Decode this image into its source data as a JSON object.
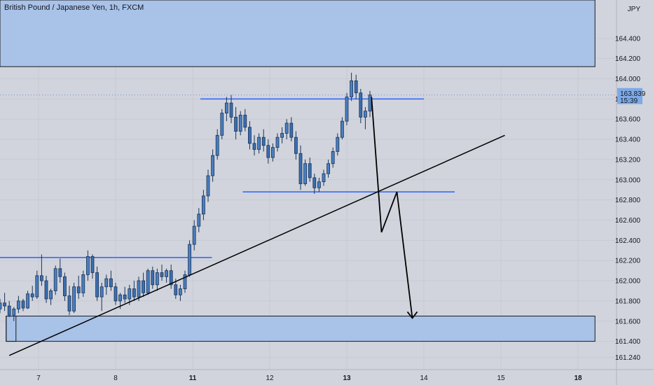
{
  "header": {
    "title": "British Pound / Japanese Yen, 1h, FXCM"
  },
  "chart_data": {
    "type": "candlestick",
    "currency": "JPY",
    "x_ticks": [
      {
        "label": "7",
        "bold": false,
        "pos": 0.5
      },
      {
        "label": "8",
        "bold": false,
        "pos": 1.5
      },
      {
        "label": "11",
        "bold": true,
        "pos": 2.5
      },
      {
        "label": "12",
        "bold": false,
        "pos": 3.5
      },
      {
        "label": "13",
        "bold": true,
        "pos": 4.5
      },
      {
        "label": "14",
        "bold": false,
        "pos": 5.5
      },
      {
        "label": "15",
        "bold": false,
        "pos": 6.5
      },
      {
        "label": "18",
        "bold": true,
        "pos": 7.5
      }
    ],
    "y_ticks": [
      "164.400",
      "164.200",
      "164.000",
      "163.800",
      "163.600",
      "163.400",
      "163.200",
      "163.000",
      "162.800",
      "162.600",
      "162.400",
      "162.200",
      "162.000",
      "161.800",
      "161.600",
      "161.400",
      "161.240"
    ],
    "y_tick_values": [
      164.4,
      164.2,
      164.0,
      163.8,
      163.6,
      163.4,
      163.2,
      163.0,
      162.8,
      162.6,
      162.4,
      162.2,
      162.0,
      161.8,
      161.6,
      161.4,
      161.24
    ],
    "ylim": [
      161.12,
      164.78
    ],
    "xlim": [
      0,
      8
    ],
    "current_price": {
      "value": 163.839,
      "label": "163.839",
      "countdown": "15:39"
    },
    "candles": [
      [
        0.0,
        161.72,
        161.82,
        161.68,
        161.78
      ],
      [
        0.06,
        161.78,
        161.88,
        161.7,
        161.75
      ],
      [
        0.12,
        161.75,
        161.8,
        161.64,
        161.66
      ],
      [
        0.18,
        161.66,
        161.74,
        161.6,
        161.72
      ],
      [
        0.24,
        161.72,
        161.85,
        161.68,
        161.8
      ],
      [
        0.3,
        161.8,
        161.82,
        161.7,
        161.73
      ],
      [
        0.36,
        161.73,
        161.9,
        161.72,
        161.87
      ],
      [
        0.42,
        161.87,
        161.95,
        161.8,
        161.84
      ],
      [
        0.48,
        161.84,
        162.1,
        161.82,
        162.05
      ],
      [
        0.54,
        162.05,
        162.26,
        161.95,
        162.0
      ],
      [
        0.6,
        162.0,
        162.05,
        161.78,
        161.82
      ],
      [
        0.66,
        161.82,
        161.92,
        161.76,
        161.9
      ],
      [
        0.72,
        161.9,
        162.15,
        161.86,
        162.12
      ],
      [
        0.78,
        162.12,
        162.22,
        161.98,
        162.04
      ],
      [
        0.84,
        162.04,
        162.08,
        161.8,
        161.85
      ],
      [
        0.9,
        161.85,
        161.95,
        161.66,
        161.7
      ],
      [
        0.96,
        161.7,
        161.98,
        161.68,
        161.94
      ],
      [
        1.02,
        161.94,
        162.05,
        161.82,
        161.88
      ],
      [
        1.08,
        161.88,
        162.1,
        161.84,
        162.06
      ],
      [
        1.14,
        162.06,
        162.3,
        162.0,
        162.24
      ],
      [
        1.2,
        162.24,
        162.26,
        162.02,
        162.08
      ],
      [
        1.26,
        162.08,
        162.14,
        161.8,
        161.84
      ],
      [
        1.32,
        161.84,
        161.98,
        161.7,
        161.94
      ],
      [
        1.38,
        161.94,
        162.06,
        161.86,
        162.02
      ],
      [
        1.44,
        162.02,
        162.1,
        161.9,
        161.94
      ],
      [
        1.5,
        161.94,
        161.98,
        161.76,
        161.8
      ],
      [
        1.56,
        161.8,
        161.88,
        161.72,
        161.86
      ],
      [
        1.62,
        161.86,
        161.94,
        161.78,
        161.82
      ],
      [
        1.68,
        161.82,
        161.96,
        161.76,
        161.92
      ],
      [
        1.74,
        161.92,
        162.0,
        161.8,
        161.84
      ],
      [
        1.8,
        161.84,
        162.04,
        161.8,
        162.0
      ],
      [
        1.86,
        162.0,
        162.08,
        161.84,
        161.88
      ],
      [
        1.92,
        161.88,
        162.12,
        161.86,
        162.1
      ],
      [
        1.98,
        162.1,
        162.14,
        161.92,
        161.96
      ],
      [
        2.04,
        161.96,
        162.12,
        161.9,
        162.08
      ],
      [
        2.1,
        162.08,
        162.16,
        162.0,
        162.04
      ],
      [
        2.16,
        162.04,
        162.12,
        161.98,
        162.1
      ],
      [
        2.22,
        162.1,
        162.16,
        161.92,
        161.96
      ],
      [
        2.28,
        161.96,
        162.02,
        161.82,
        161.86
      ],
      [
        2.34,
        161.86,
        161.96,
        161.8,
        161.92
      ],
      [
        2.4,
        161.92,
        162.1,
        161.88,
        162.06
      ],
      [
        2.46,
        162.06,
        162.4,
        162.04,
        162.36
      ],
      [
        2.52,
        162.36,
        162.6,
        162.3,
        162.54
      ],
      [
        2.58,
        162.54,
        162.72,
        162.48,
        162.66
      ],
      [
        2.64,
        162.66,
        162.9,
        162.6,
        162.84
      ],
      [
        2.7,
        162.84,
        163.1,
        162.78,
        163.04
      ],
      [
        2.76,
        163.04,
        163.3,
        162.98,
        163.24
      ],
      [
        2.82,
        163.24,
        163.5,
        163.2,
        163.44
      ],
      [
        2.88,
        163.44,
        163.7,
        163.4,
        163.66
      ],
      [
        2.94,
        163.66,
        163.82,
        163.58,
        163.76
      ],
      [
        3.0,
        163.76,
        163.84,
        163.56,
        163.62
      ],
      [
        3.06,
        163.62,
        163.72,
        163.4,
        163.48
      ],
      [
        3.12,
        163.48,
        163.68,
        163.44,
        163.64
      ],
      [
        3.18,
        163.64,
        163.7,
        163.48,
        163.52
      ],
      [
        3.24,
        163.52,
        163.58,
        163.3,
        163.36
      ],
      [
        3.3,
        163.36,
        163.44,
        163.24,
        163.3
      ],
      [
        3.36,
        163.3,
        163.46,
        163.26,
        163.42
      ],
      [
        3.42,
        163.42,
        163.5,
        163.28,
        163.34
      ],
      [
        3.48,
        163.34,
        163.4,
        163.16,
        163.22
      ],
      [
        3.54,
        163.22,
        163.36,
        163.18,
        163.32
      ],
      [
        3.6,
        163.32,
        163.46,
        163.28,
        163.42
      ],
      [
        3.66,
        163.42,
        163.52,
        163.36,
        163.46
      ],
      [
        3.72,
        163.46,
        163.6,
        163.4,
        163.56
      ],
      [
        3.78,
        163.56,
        163.62,
        163.38,
        163.42
      ],
      [
        3.84,
        163.42,
        163.48,
        163.2,
        163.26
      ],
      [
        3.9,
        163.26,
        163.34,
        162.9,
        162.96
      ],
      [
        3.96,
        162.96,
        163.2,
        162.94,
        163.16
      ],
      [
        4.02,
        163.16,
        163.22,
        162.98,
        163.02
      ],
      [
        4.08,
        163.02,
        163.06,
        162.86,
        162.92
      ],
      [
        4.14,
        162.92,
        163.02,
        162.88,
        162.98
      ],
      [
        4.2,
        162.98,
        163.1,
        162.94,
        163.06
      ],
      [
        4.26,
        163.06,
        163.2,
        163.02,
        163.16
      ],
      [
        4.32,
        163.16,
        163.32,
        163.12,
        163.28
      ],
      [
        4.38,
        163.28,
        163.46,
        163.24,
        163.42
      ],
      [
        4.44,
        163.42,
        163.62,
        163.4,
        163.58
      ],
      [
        4.5,
        163.58,
        163.86,
        163.54,
        163.82
      ],
      [
        4.56,
        163.82,
        164.06,
        163.78,
        163.98
      ],
      [
        4.62,
        163.98,
        164.04,
        163.8,
        163.86
      ],
      [
        4.68,
        163.86,
        163.9,
        163.56,
        163.62
      ],
      [
        4.74,
        163.62,
        163.72,
        163.5,
        163.68
      ],
      [
        4.8,
        163.68,
        163.88,
        163.62,
        163.84
      ]
    ],
    "levels": [
      {
        "name": "resistance-top",
        "value": 163.8,
        "x_start": 2.6,
        "x_end": 5.5
      },
      {
        "name": "resistance-mid",
        "value": 162.88,
        "x_start": 3.15,
        "x_end": 5.9
      },
      {
        "name": "resistance-low",
        "value": 162.23,
        "x_start": 0.0,
        "x_end": 2.75
      }
    ],
    "zones": [
      {
        "name": "supply-zone",
        "y_low": 164.12,
        "y_high": 164.78,
        "x_start": 0.0,
        "x_end": 7.72
      },
      {
        "name": "demand-zone",
        "y_low": 161.4,
        "y_high": 161.65,
        "x_start": 0.08,
        "x_end": 7.72
      }
    ],
    "trendline": {
      "x1": 0.12,
      "y1": 161.26,
      "x2": 6.55,
      "y2": 163.44
    },
    "projection": [
      [
        4.82,
        163.82
      ],
      [
        4.95,
        162.48
      ],
      [
        5.15,
        162.88
      ],
      [
        5.35,
        161.63
      ]
    ]
  },
  "colors": {
    "background": "#d1d4dc",
    "zone_fill": "#a9c2e8",
    "zone_border": "#1a1a1a",
    "level_line": "#2962ff",
    "candle_body": "#4a7fc0",
    "candle_border": "#1b3357",
    "grid": "#c7cad2",
    "price_label_bg": "#7eaae6"
  }
}
